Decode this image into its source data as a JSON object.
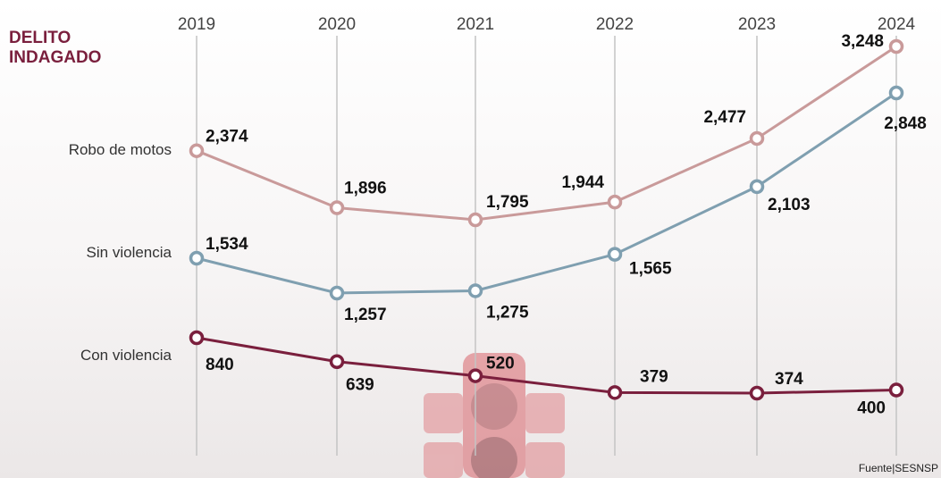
{
  "chart_data": {
    "type": "line",
    "title": "DELITO INDAGADO",
    "source": "Fuente|SESNSP",
    "categories": [
      "2019",
      "2020",
      "2021",
      "2022",
      "2023",
      "2024"
    ],
    "series": [
      {
        "name": "Robo de motos",
        "color": "#c99a9a",
        "values": [
          2374,
          1896,
          1795,
          1944,
          2477,
          3248
        ],
        "value_labels": [
          "2,374",
          "1,896",
          "1,795",
          "1,944",
          "2,477",
          "3,248"
        ]
      },
      {
        "name": "Sin violencia",
        "color": "#7f9fb0",
        "values": [
          1534,
          1257,
          1275,
          1565,
          2103,
          2848
        ],
        "value_labels": [
          "1,534",
          "1,257",
          "1,275",
          "1,565",
          "2,103",
          "2,848"
        ]
      },
      {
        "name": "Con violencia",
        "color": "#7a1f3d",
        "values": [
          840,
          639,
          520,
          379,
          374,
          400
        ],
        "value_labels": [
          "840",
          "639",
          "520",
          "379",
          "374",
          "400"
        ]
      }
    ]
  }
}
